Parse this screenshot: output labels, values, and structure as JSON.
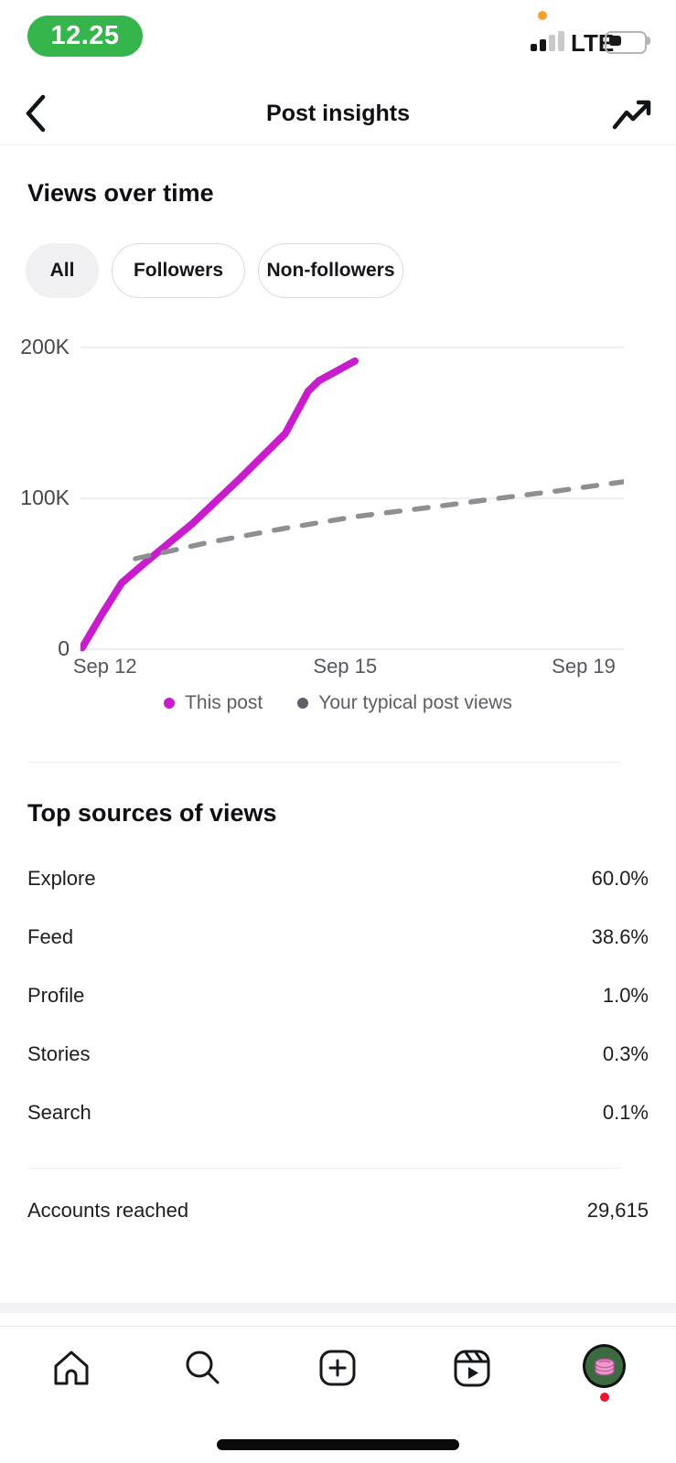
{
  "status_bar": {
    "time": "12.25",
    "network": "LTE"
  },
  "header": {
    "title": "Post insights"
  },
  "views_section": {
    "title": "Views over time",
    "filters": [
      {
        "label": "All",
        "selected": true
      },
      {
        "label": "Followers",
        "selected": false
      },
      {
        "label": "Non-followers",
        "selected": false
      }
    ]
  },
  "chart_data": {
    "type": "line",
    "title": "Views over time",
    "ylim": [
      0,
      200
    ],
    "y_units": "thousands of views",
    "grid": "horizontal",
    "yticks": [
      {
        "label": "0",
        "value": 0
      },
      {
        "label": "100K",
        "value": 100
      },
      {
        "label": "200K",
        "value": 200
      }
    ],
    "xticks": [
      {
        "label": "Sep 12",
        "t": 0.045
      },
      {
        "label": "Sep 15",
        "t": 0.487
      },
      {
        "label": "Sep 19",
        "t": 0.926
      }
    ],
    "legend_position": "bottom",
    "series": [
      {
        "name": "This post",
        "color": "#c81ccd",
        "dashed": false,
        "points_t_v": [
          [
            0.003,
            1
          ],
          [
            0.039,
            23
          ],
          [
            0.076,
            44
          ],
          [
            0.118,
            57
          ],
          [
            0.205,
            83
          ],
          [
            0.293,
            113
          ],
          [
            0.377,
            143
          ],
          [
            0.419,
            171
          ],
          [
            0.439,
            178
          ],
          [
            0.505,
            191
          ]
        ],
        "note": "starts near 0 on Sep 12, ends ~191K shortly after Sep 15"
      },
      {
        "name": "Your typical post views",
        "color": "#8e8f92",
        "dashed": true,
        "points_t_v": [
          [
            0.101,
            60
          ],
          [
            0.239,
            71
          ],
          [
            0.374,
            80
          ],
          [
            0.508,
            88
          ],
          [
            0.643,
            94
          ],
          [
            0.769,
            100
          ],
          [
            0.879,
            105
          ],
          [
            1.0,
            111
          ]
        ],
        "note": "rises gently from ~60K to ~111K by Sep 19"
      }
    ],
    "legend": [
      {
        "label": "This post",
        "color": "#c81ccd"
      },
      {
        "label": "Your typical post views",
        "color": "#5d6066"
      }
    ]
  },
  "sources_section": {
    "title": "Top sources of views",
    "rows": [
      {
        "label": "Explore",
        "value": "60.0%"
      },
      {
        "label": "Feed",
        "value": "38.6%"
      },
      {
        "label": "Profile",
        "value": "1.0%"
      },
      {
        "label": "Stories",
        "value": "0.3%"
      },
      {
        "label": "Search",
        "value": "0.1%"
      }
    ]
  },
  "accounts_reached": {
    "label": "Accounts reached",
    "value": "29,615"
  },
  "nav": {
    "items": [
      "home",
      "search",
      "create",
      "reels",
      "profile"
    ]
  },
  "colors": {
    "accent_magenta": "#c81ccd",
    "typical_gray": "#8e8f92",
    "status_green": "#35b54c",
    "record_orange": "#f6a12d",
    "notification_red": "#ef1434",
    "gridline": "#e9e9eb",
    "avatar_green": "#3c6b42",
    "avatar_pink": "#ec9bcd"
  }
}
